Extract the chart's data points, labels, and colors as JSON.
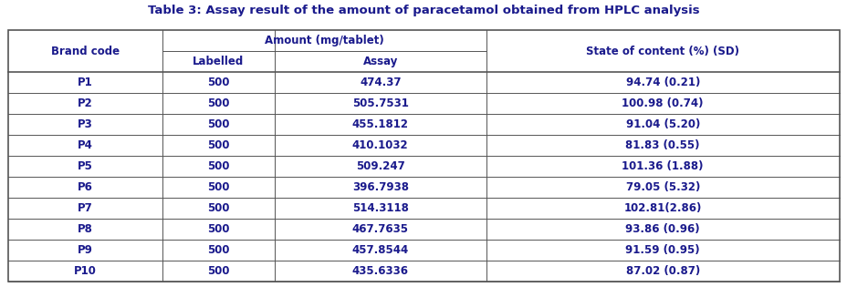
{
  "title": "Table 3: Assay result of the amount of paracetamol obtained from HPLC analysis",
  "title_fontsize": 9.5,
  "title_color": "#1a1a8c",
  "header_color": "#1a1a8c",
  "cell_text_color": "#1a1a8c",
  "amount_header": "Amount (mg/tablet)",
  "sub_headers": [
    "Labelled",
    "Assay"
  ],
  "state_header": "State of content (%) (SD)",
  "brand_header": "Brand code",
  "rows": [
    [
      "P1",
      "500",
      "474.37",
      "94.74 (0.21)"
    ],
    [
      "P2",
      "500",
      "505.7531",
      "100.98 (0.74)"
    ],
    [
      "P3",
      "500",
      "455.1812",
      "91.04 (5.20)"
    ],
    [
      "P4",
      "500",
      "410.1032",
      "81.83 (0.55)"
    ],
    [
      "P5",
      "500",
      "509.247",
      "101.36 (1.88)"
    ],
    [
      "P6",
      "500",
      "396.7938",
      "79.05 (5.32)"
    ],
    [
      "P7",
      "500",
      "514.3118",
      "102.81(2.86)"
    ],
    [
      "P8",
      "500",
      "467.7635",
      "93.86 (0.96)"
    ],
    [
      "P9",
      "500",
      "457.8544",
      "91.59 (0.95)"
    ],
    [
      "P10",
      "500",
      "435.6336",
      "87.02 (0.87)"
    ]
  ],
  "figsize": [
    9.29,
    3.15
  ],
  "dpi": 100,
  "line_color": "#555555",
  "bg_color": "#ffffff",
  "data_fontsize": 8.5,
  "header_fontsize": 8.5
}
